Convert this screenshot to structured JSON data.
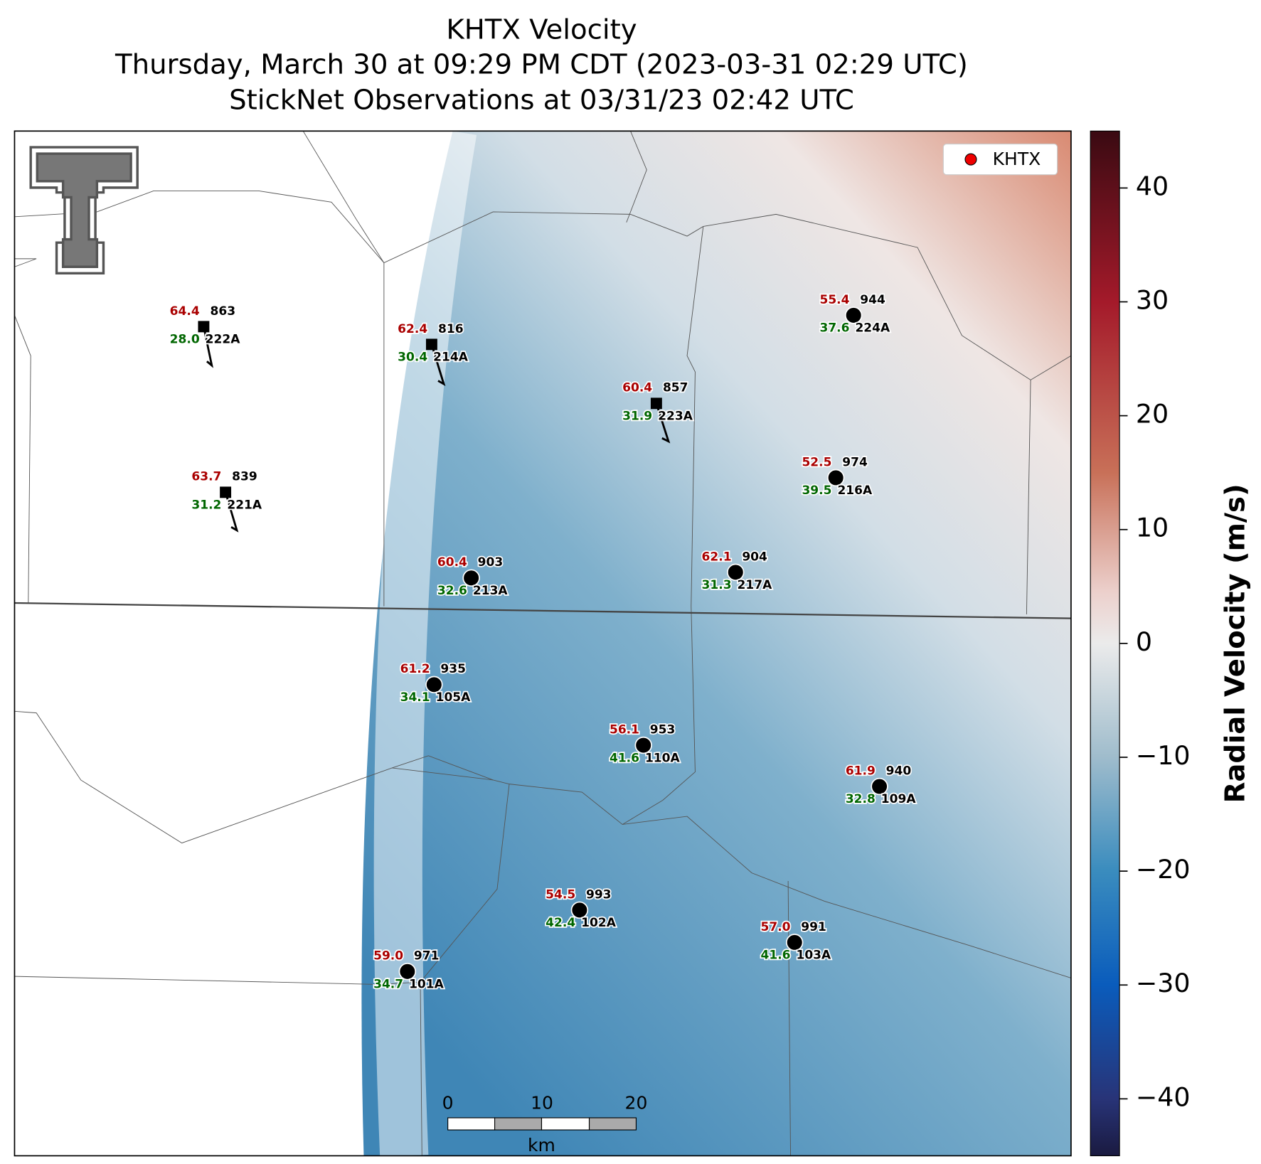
{
  "title": [
    "KHTX Velocity",
    "Thursday, March 30 at 09:29 PM CDT (2023-03-31 02:29 UTC)",
    "StickNet Observations at 03/31/23 02:42 UTC"
  ],
  "legend": "KHTX",
  "colorbar": {
    "label": "Radial Velocity (m/s)",
    "lim": [
      -45,
      45
    ],
    "ticks": [
      40,
      30,
      20,
      10,
      0,
      {
        "value": -10,
        "label": "−10"
      },
      {
        "value": -20,
        "label": "−20"
      },
      {
        "value": -30,
        "label": "−30"
      },
      {
        "value": -40,
        "label": "−40"
      }
    ]
  },
  "scale_bar": {
    "ticks": [
      0,
      10,
      20
    ],
    "unit": "km"
  },
  "stations": [
    {
      "id": "222A",
      "temperature": "64.4",
      "pressure": "863",
      "dewpoint": "28.0",
      "marker": "square"
    },
    {
      "id": "214A",
      "temperature": "62.4",
      "pressure": "816",
      "dewpoint": "30.4",
      "marker": "square"
    },
    {
      "id": "223A",
      "temperature": "60.4",
      "pressure": "857",
      "dewpoint": "31.9",
      "marker": "square"
    },
    {
      "id": "221A",
      "temperature": "63.7",
      "pressure": "839",
      "dewpoint": "31.2",
      "marker": "square"
    },
    {
      "id": "224A",
      "temperature": "55.4",
      "pressure": "944",
      "dewpoint": "37.6",
      "marker": "circle"
    },
    {
      "id": "216A",
      "temperature": "52.5",
      "pressure": "974",
      "dewpoint": "39.5",
      "marker": "circle"
    },
    {
      "id": "213A",
      "temperature": "60.4",
      "pressure": "903",
      "dewpoint": "32.6",
      "marker": "circle"
    },
    {
      "id": "217A",
      "temperature": "62.1",
      "pressure": "904",
      "dewpoint": "31.3",
      "marker": "circle"
    },
    {
      "id": "105A",
      "temperature": "61.2",
      "pressure": "935",
      "dewpoint": "34.1",
      "marker": "circle"
    },
    {
      "id": "110A",
      "temperature": "56.1",
      "pressure": "953",
      "dewpoint": "41.6",
      "marker": "circle"
    },
    {
      "id": "109A",
      "temperature": "61.9",
      "pressure": "940",
      "dewpoint": "32.8",
      "marker": "circle"
    },
    {
      "id": "102A",
      "temperature": "54.5",
      "pressure": "993",
      "dewpoint": "42.4",
      "marker": "circle"
    },
    {
      "id": "103A",
      "temperature": "57.0",
      "pressure": "991",
      "dewpoint": "41.6",
      "marker": "circle"
    },
    {
      "id": "101A",
      "temperature": "59.0",
      "pressure": "971",
      "dewpoint": "34.7",
      "marker": "circle"
    }
  ]
}
